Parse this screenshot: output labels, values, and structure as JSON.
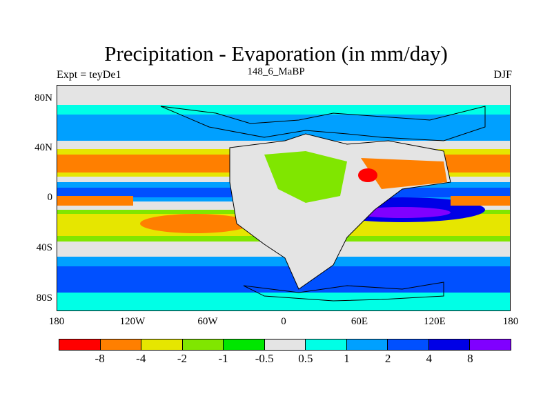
{
  "title": "Precipitation - Evaporation (in mm/day)",
  "subtitle": "148_6_MaBP",
  "left_label": "Expt = teyDe1",
  "right_label": "DJF",
  "map": {
    "y_ticks": [
      "80N",
      "40N",
      "0",
      "40S",
      "80S"
    ],
    "x_ticks": [
      "180",
      "120W",
      "60W",
      "0",
      "60E",
      "120E",
      "180"
    ]
  },
  "colorbar": {
    "colors": [
      "#ff0000",
      "#ff7f00",
      "#e6e600",
      "#80e600",
      "#00e600",
      "#e4e4e4",
      "#00ffe6",
      "#00a0ff",
      "#0050ff",
      "#0000e6",
      "#8000ff"
    ],
    "labels": [
      "-8",
      "-4",
      "-2",
      "-1",
      "-0.5",
      "0.5",
      "1",
      "2",
      "4",
      "8"
    ]
  }
}
